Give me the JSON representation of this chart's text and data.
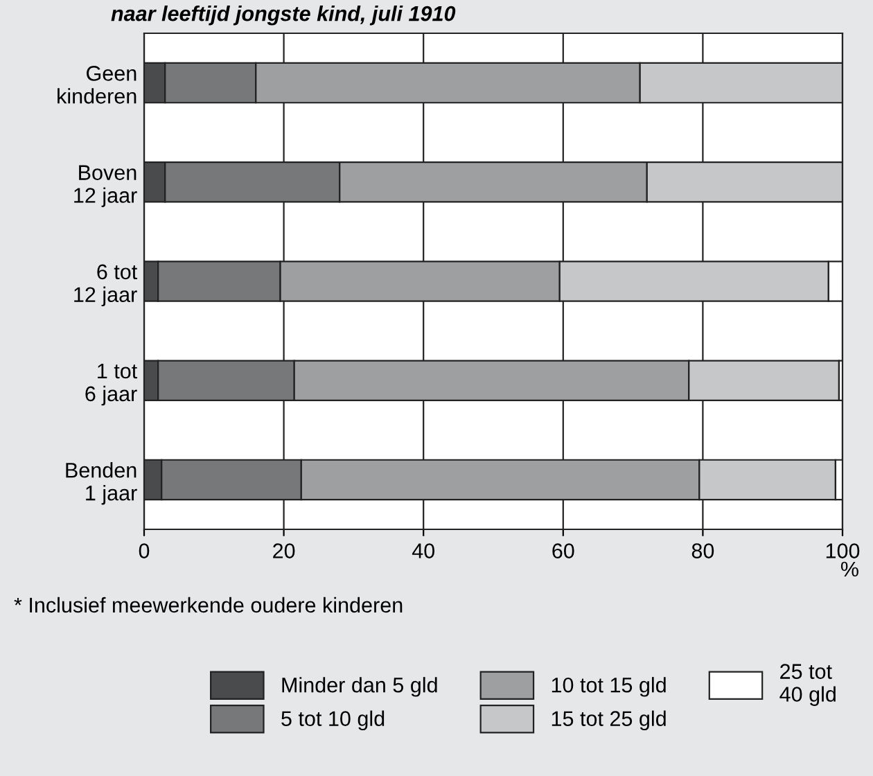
{
  "chart_data": {
    "type": "bar",
    "orientation": "horizontal",
    "stacked": true,
    "title": "naar leeftijd jongste kind, juli 1910",
    "categories": [
      "Geen\nkinderen",
      "Boven\n12 jaar",
      "6 tot\n12 jaar",
      "1 tot\n6 jaar",
      "Benden\n1 jaar"
    ],
    "series": [
      {
        "name": "Minder dan 5 gld",
        "color": "#4a4b4d",
        "values": [
          3,
          3,
          2,
          2,
          2.5
        ]
      },
      {
        "name": "5 tot 10 gld",
        "color": "#77787a",
        "values": [
          13,
          25,
          17.5,
          19.5,
          20
        ]
      },
      {
        "name": "10 tot 15 gld",
        "color": "#9e9fa1",
        "values": [
          55,
          44,
          40,
          56.5,
          57
        ]
      },
      {
        "name": "15 tot 25 gld",
        "color": "#c6c7c9",
        "values": [
          29,
          28,
          38.5,
          21.5,
          19.5
        ]
      },
      {
        "name": "25 tot\n40 gld",
        "color": "#ffffff",
        "values": [
          0,
          0,
          2,
          0.5,
          1
        ]
      }
    ],
    "xlabel": "%",
    "xlim": [
      0,
      100
    ],
    "xticks": [
      0,
      20,
      40,
      60,
      80,
      100
    ],
    "grid": "x",
    "legend": "bottom",
    "annotations": [
      "* Inclusief meewerkende oudere kinderen"
    ]
  }
}
